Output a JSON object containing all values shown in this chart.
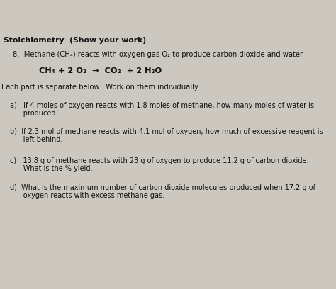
{
  "bg_color": "#ccc8c0",
  "text_color": "#111111",
  "title": "Stoichiometry  (Show your work)",
  "problem_line": "8.  Methane (CH₄) reacts with oxygen gas O₂ to produce carbon dioxide and water",
  "equation": "CH₄ + 2 O₂  →  CO₂  + 2 H₂O",
  "separator": "Each part is separate below.  Work on them individually",
  "part_a_1": "a)   If 4 moles of oxygen reacts with 1.8 moles of methane, how many moles of water is",
  "part_a_2": "      produced",
  "part_b_1": "b)  If 2.3 mol of methane reacts with 4.1 mol of oxygen, how much of excessive reagent is",
  "part_b_2": "      left behind.",
  "part_c_1": "c)   13.8 g of methane reacts with 23 g of oxygen to produce 11.2 g of carbon dioxide.",
  "part_c_2": "      What is the % yield.",
  "part_d_1": "d)  What is the maximum number of carbon dioxide molecules produced when 17.2 g of",
  "part_d_2": "      oxygen reacts with excess methane gas."
}
